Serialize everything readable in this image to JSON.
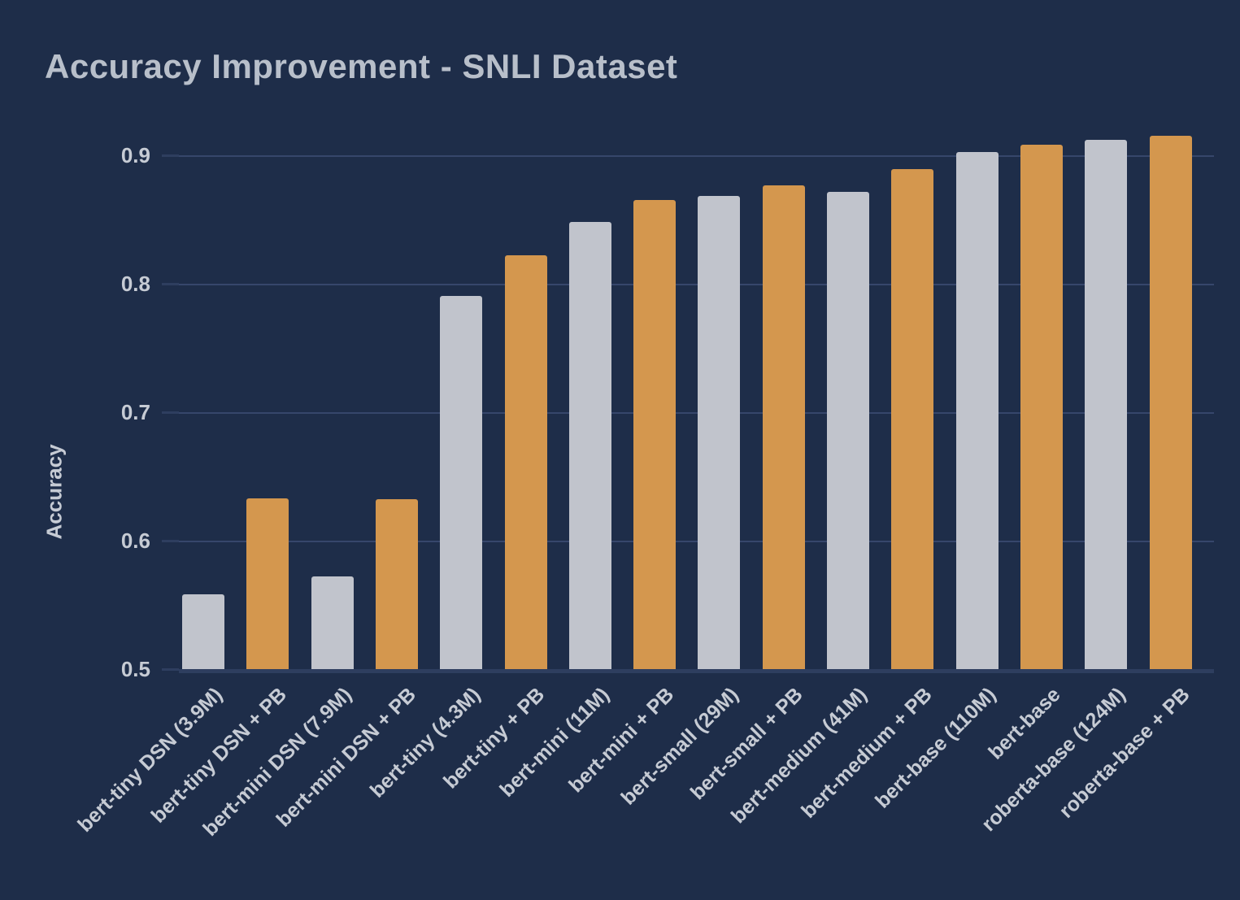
{
  "colors": {
    "background": "#1e2d49",
    "gridline": "#36466b",
    "axis_line": "#2e3e5f",
    "tick_text": "#c6cbd4",
    "title_text": "#b8bfca"
  },
  "chart_data": {
    "type": "bar",
    "title": "Accuracy Improvement - SNLI Dataset",
    "xlabel": "",
    "ylabel": "Accuracy",
    "ylim": [
      0.5,
      0.925
    ],
    "yticks": [
      "0.5",
      "0.6",
      "0.7",
      "0.8",
      "0.9"
    ],
    "grid": true,
    "legend": false,
    "categories": [
      "bert-tiny DSN (3.9M)",
      "bert-tiny DSN + PB",
      "bert-mini DSN (7.9M)",
      "bert-mini DSN + PB",
      "bert-tiny (4.3M)",
      "bert-tiny + PB",
      "bert-mini (11M)",
      "bert-mini + PB",
      "bert-small (29M)",
      "bert-small + PB",
      "bert-medium (41M)",
      "bert-medium + PB",
      "bert-base (110M)",
      "bert-base",
      "roberta-base (124M)",
      "roberta-base + PB"
    ],
    "values": [
      0.558,
      0.633,
      0.572,
      0.632,
      0.79,
      0.822,
      0.848,
      0.865,
      0.868,
      0.876,
      0.871,
      0.889,
      0.902,
      0.908,
      0.912,
      0.915
    ],
    "bar_series": [
      "baseline",
      "pb",
      "baseline",
      "pb",
      "baseline",
      "pb",
      "baseline",
      "pb",
      "baseline",
      "pb",
      "baseline",
      "pb",
      "baseline",
      "pb",
      "baseline",
      "pb"
    ],
    "series_palette": {
      "baseline": "#c1c4cc",
      "pb": "#d4974e"
    }
  }
}
